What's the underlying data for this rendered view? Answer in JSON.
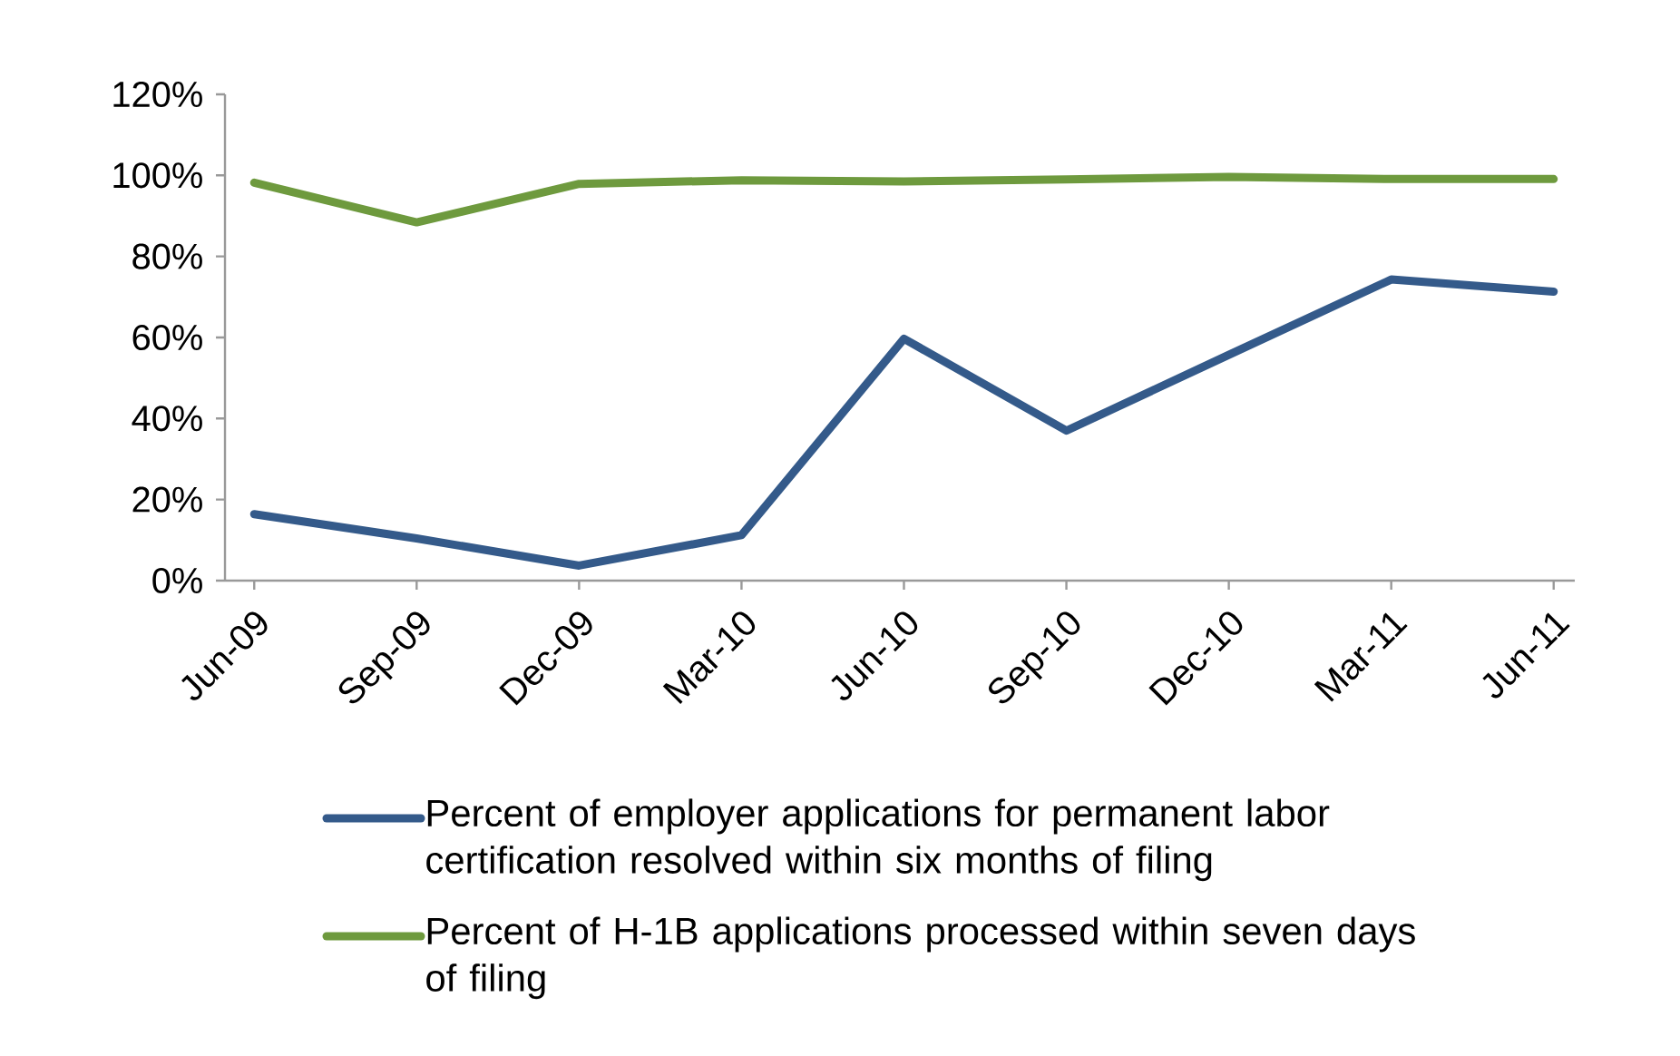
{
  "chart_data": {
    "type": "line",
    "categories": [
      "Jun-09",
      "Sep-09",
      "Dec-09",
      "Mar-10",
      "Jun-10",
      "Sep-10",
      "Dec-10",
      "Mar-11",
      "Jun-11"
    ],
    "series": [
      {
        "name": "Percent of employer applications for permanent labor certification resolved within six months of filing",
        "color": "#345a8a",
        "values": [
          16.4,
          10.4,
          3.7,
          11.2,
          59.7,
          37,
          55.7,
          74.3,
          71.3
        ]
      },
      {
        "name": "Percent of H-1B applications processed within seven days of filing",
        "color": "#6e9a3e",
        "values": [
          98.2,
          88.4,
          97.9,
          98.8,
          98.5,
          99,
          99.6,
          99.1,
          99.1
        ]
      }
    ],
    "ylim": [
      0,
      120
    ],
    "yticks": [
      {
        "value": 0,
        "label": "0%"
      },
      {
        "value": 20,
        "label": "20%"
      },
      {
        "value": 40,
        "label": "40%"
      },
      {
        "value": 60,
        "label": "60%"
      },
      {
        "value": 80,
        "label": "80%"
      },
      {
        "value": 100,
        "label": "100%"
      },
      {
        "value": 120,
        "label": "120%"
      }
    ],
    "legend": "bottom",
    "marker": "none",
    "line_style": "solid"
  }
}
